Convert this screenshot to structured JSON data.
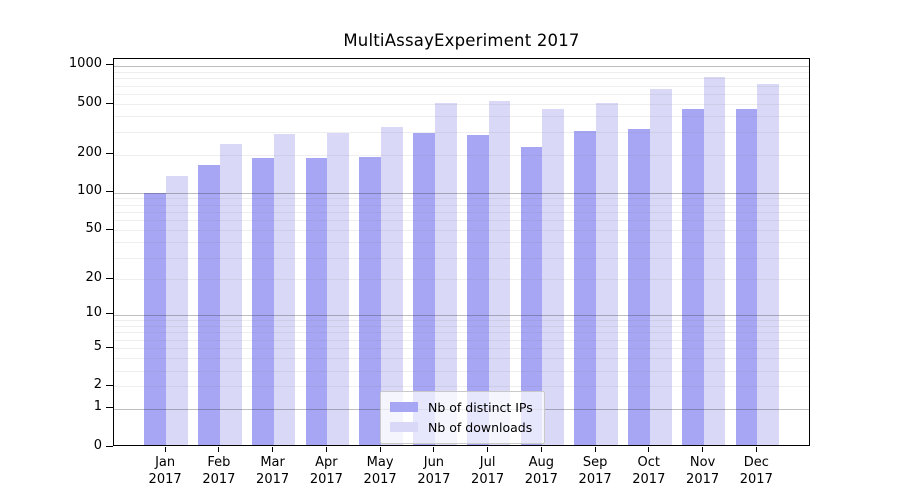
{
  "chart_data": {
    "type": "bar",
    "title": "MultiAssayExperiment 2017",
    "categories": [
      "Jan 2017",
      "Feb 2017",
      "Mar 2017",
      "Apr 2017",
      "May 2017",
      "Jun 2017",
      "Jul 2017",
      "Aug 2017",
      "Sep 2017",
      "Oct 2017",
      "Nov 2017",
      "Dec 2017"
    ],
    "series": [
      {
        "name": "Nb of distinct IPs",
        "color": "#a6a6f4",
        "values": [
          95,
          160,
          180,
          182,
          185,
          288,
          275,
          220,
          295,
          305,
          445,
          445
        ]
      },
      {
        "name": "Nb of downloads",
        "color": "#d9d9f7",
        "values": [
          130,
          235,
          280,
          285,
          320,
          490,
          512,
          440,
          490,
          635,
          790,
          700
        ]
      }
    ],
    "y_axis": {
      "scale": "log10(1+x)",
      "tick_labels": [
        "1000",
        "500",
        "200",
        "100",
        "50",
        "20",
        "10",
        "5",
        "2",
        "1",
        "0"
      ],
      "tick_values": [
        1000,
        500,
        200,
        100,
        50,
        20,
        10,
        5,
        2,
        1,
        0
      ],
      "ylim": [
        0,
        1130
      ]
    },
    "grid": {
      "major_values": [
        1,
        10,
        100,
        1000
      ],
      "minor": "multiples 2-9 of each decade",
      "major_color": "#c0c0c0",
      "minor_color": "#ededed"
    },
    "legend_position": "inside-bottom-center",
    "colors": {
      "frame": "#000000",
      "background": "#ffffff"
    }
  }
}
